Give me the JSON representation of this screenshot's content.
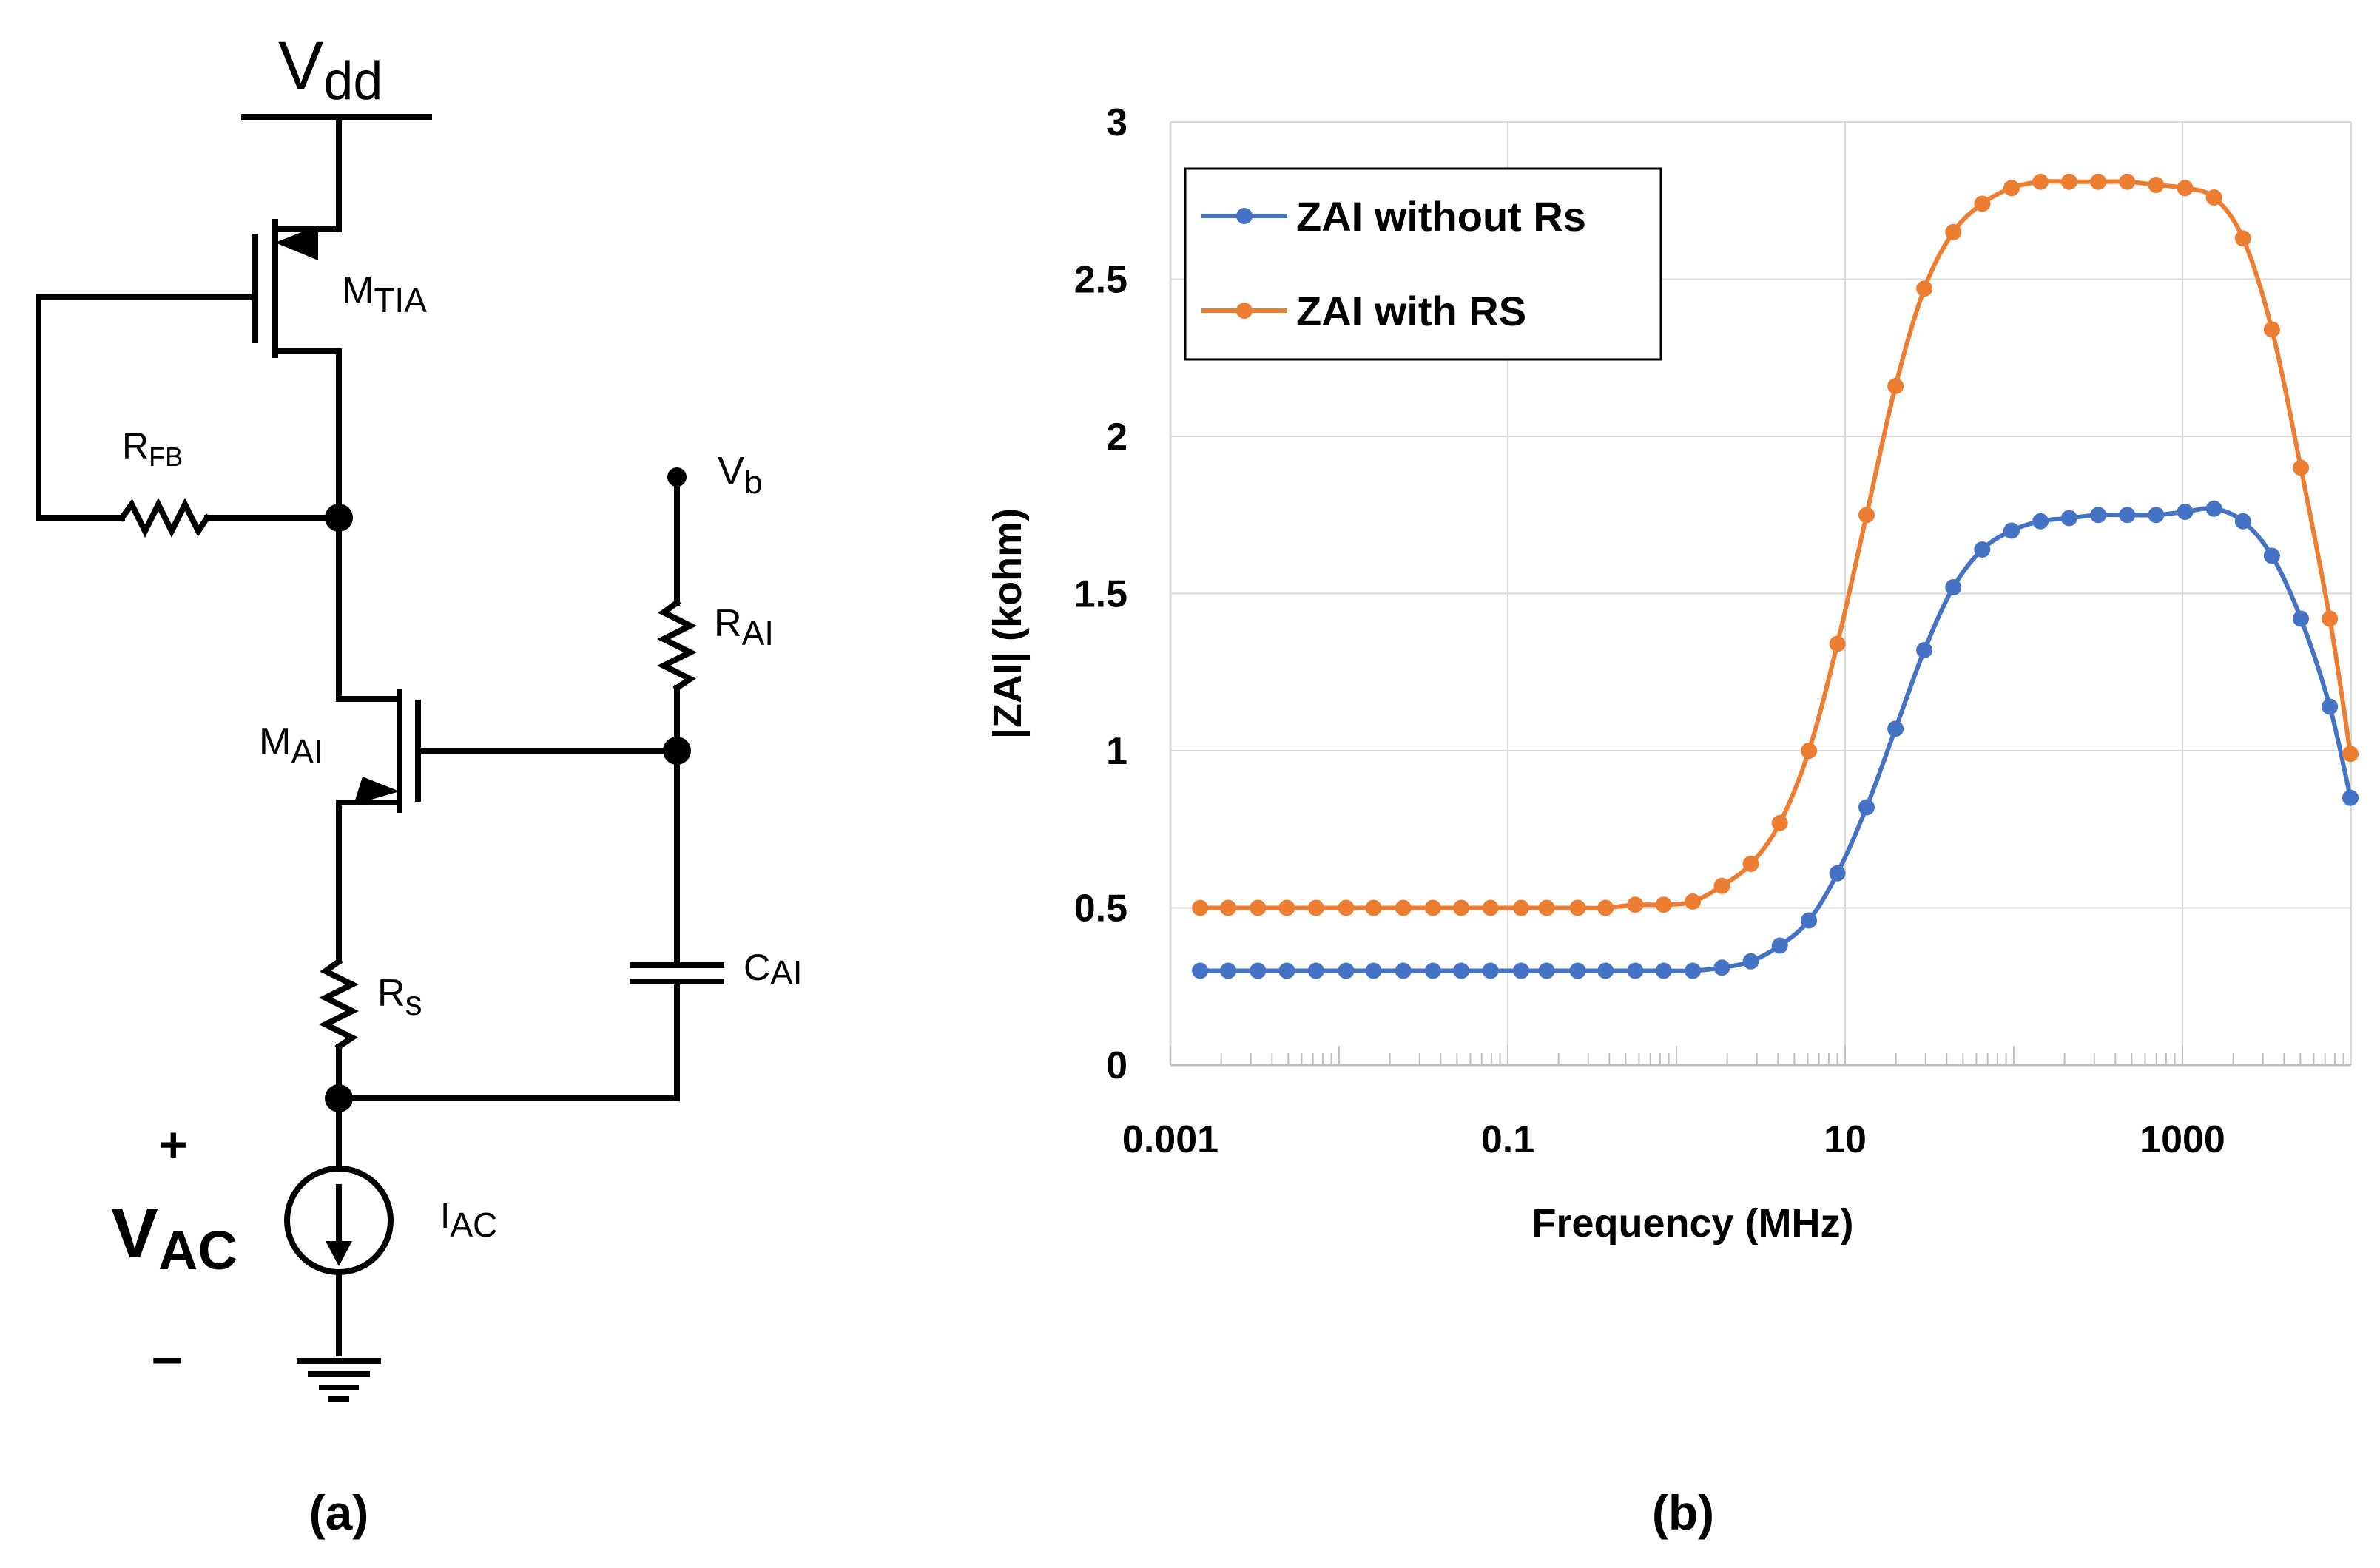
{
  "circuit": {
    "vdd_label": "V",
    "vdd_sub": "dd",
    "mtia_label": "M",
    "mtia_sub": "TIA",
    "rfb_label": "R",
    "rfb_sub": "FB",
    "vb_label": "V",
    "vb_sub": "b",
    "rai_label": "R",
    "rai_sub": "AI",
    "mai_label": "M",
    "mai_sub": "AI",
    "cai_label": "C",
    "cai_sub": "AI",
    "rs_label": "R",
    "rs_sub": "s",
    "vac_label": "V",
    "vac_sub": "AC",
    "iac_label": "I",
    "iac_sub": "AC",
    "plus": "+",
    "minus": "–"
  },
  "panels": {
    "a": "(a)",
    "b": "(b)"
  },
  "colors": {
    "blue": "#4472C4",
    "orange": "#ED7D31",
    "grid": "#D9D9D9"
  },
  "chart_data": {
    "type": "line",
    "xscale": "log",
    "xlabel": "Frequency (MHz)",
    "ylabel": "|ZAI| (kohm)",
    "xlim": [
      0.001,
      10000
    ],
    "ylim": [
      0,
      3
    ],
    "xticks": [
      0.001,
      0.1,
      10,
      1000
    ],
    "xtick_labels": [
      "0.001",
      "0.1",
      "10",
      "1000"
    ],
    "yticks": [
      0,
      0.5,
      1,
      1.5,
      2,
      2.5,
      3
    ],
    "ytick_labels": [
      "0",
      "0.5",
      "1",
      "1.5",
      "2",
      "2.5",
      "3"
    ],
    "legend_position": "top-left",
    "x": [
      0.0015,
      0.0022,
      0.0033,
      0.0049,
      0.0073,
      0.011,
      0.016,
      0.024,
      0.036,
      0.053,
      0.079,
      0.12,
      0.17,
      0.26,
      0.38,
      0.57,
      0.84,
      1.25,
      1.86,
      2.76,
      4.1,
      6.1,
      9.0,
      13.4,
      19.9,
      29.5,
      43.8,
      65,
      97,
      144,
      213,
      317,
      470,
      698,
      1036,
      1539,
      2284,
      3391,
      5035,
      7473,
      9900
    ],
    "series": [
      {
        "name": "ZAI without Rs",
        "color": "#4472C4",
        "values": [
          0.3,
          0.3,
          0.3,
          0.3,
          0.3,
          0.3,
          0.3,
          0.3,
          0.3,
          0.3,
          0.3,
          0.3,
          0.3,
          0.3,
          0.3,
          0.3,
          0.3,
          0.3,
          0.31,
          0.33,
          0.38,
          0.46,
          0.61,
          0.82,
          1.07,
          1.32,
          1.52,
          1.64,
          1.7,
          1.73,
          1.74,
          1.75,
          1.75,
          1.75,
          1.76,
          1.77,
          1.73,
          1.62,
          1.42,
          1.14,
          0.85
        ]
      },
      {
        "name": "ZAI with RS",
        "color": "#ED7D31",
        "values": [
          0.5,
          0.5,
          0.5,
          0.5,
          0.5,
          0.5,
          0.5,
          0.5,
          0.5,
          0.5,
          0.5,
          0.5,
          0.5,
          0.5,
          0.5,
          0.51,
          0.51,
          0.52,
          0.57,
          0.64,
          0.77,
          1.0,
          1.34,
          1.75,
          2.16,
          2.47,
          2.65,
          2.74,
          2.79,
          2.81,
          2.81,
          2.81,
          2.81,
          2.8,
          2.79,
          2.76,
          2.63,
          2.34,
          1.9,
          1.42,
          0.99
        ]
      }
    ]
  }
}
